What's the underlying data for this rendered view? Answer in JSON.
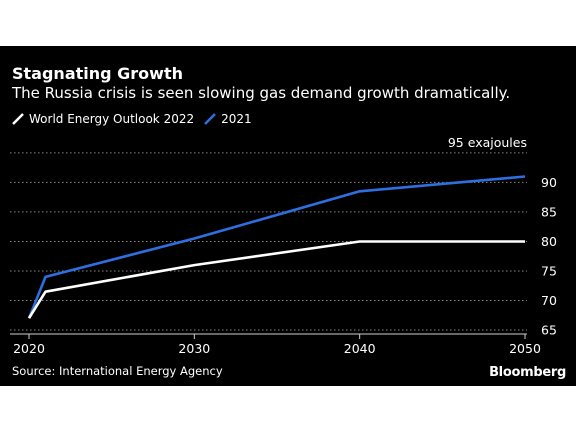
{
  "title": "Stagnating Growth",
  "subtitle": "The Russia crisis is seen slowing gas demand growth dramatically.",
  "source": "Source: International Energy Agency",
  "brand": "Bloomberg",
  "unit_label": "95 exajoules",
  "colors": {
    "background": "#000000",
    "weo2022": "#ffffff",
    "y2021": "#2e6fe0",
    "grid": "#8a8a8a",
    "text": "#ffffff"
  },
  "chart_data": {
    "type": "line",
    "x": [
      2020,
      2021,
      2030,
      2040,
      2050
    ],
    "series": [
      {
        "name": "World Energy Outlook 2022",
        "color": "#ffffff",
        "values": [
          67,
          71.5,
          76,
          80,
          80
        ]
      },
      {
        "name": "2021",
        "color": "#2e6fe0",
        "values": [
          67,
          74,
          80.5,
          88.5,
          91
        ]
      }
    ],
    "xticks": [
      2020,
      2030,
      2040,
      2050
    ],
    "yticks": [
      65,
      70,
      75,
      80,
      85,
      90,
      95
    ],
    "ylim": [
      64.5,
      96.5
    ],
    "xlim": [
      2020,
      2050
    ],
    "grid": "horizontal dotted",
    "legend": "top-left",
    "yaxis_side": "right"
  }
}
